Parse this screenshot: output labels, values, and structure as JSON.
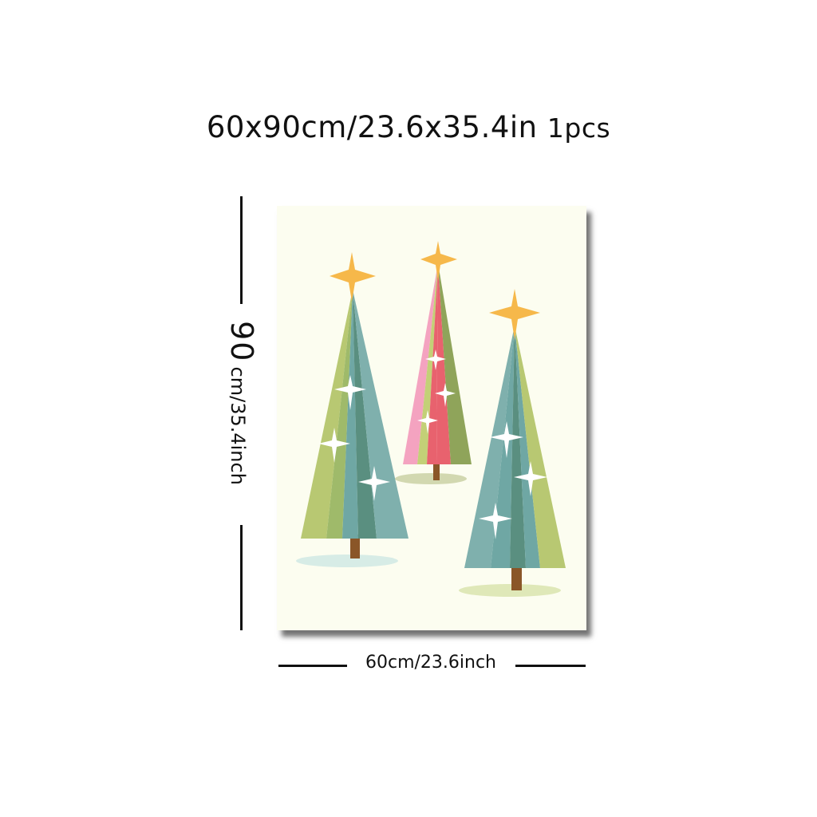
{
  "headline": {
    "size_text": "60x90cm/23.6x35.4in",
    "count_text": "1pcs"
  },
  "dimensions": {
    "height_main": "90",
    "height_sub": "cm/35.4inch",
    "width_label": "60cm/23.6inch"
  },
  "artwork": {
    "colors": {
      "background": "#fcfdf0",
      "teal": "#6fa7a4",
      "dark_teal": "#5a8f80",
      "green": "#b8c872",
      "olive": "#8fa45a",
      "pink": "#f4a3c0",
      "red": "#e8626e",
      "gold": "#f6b84a",
      "trunk": "#8a5628",
      "shadow_blue": "#d7ece6",
      "shadow_green": "#dfe8b8"
    }
  }
}
